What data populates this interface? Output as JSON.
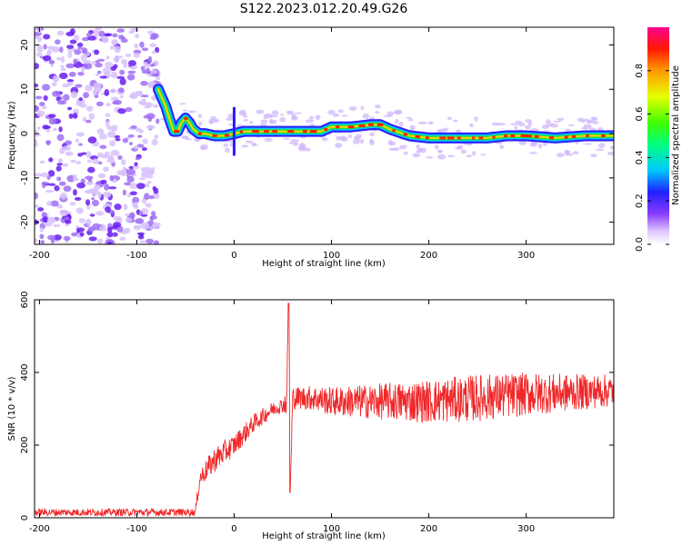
{
  "title": "S122.2023.012.20.49.G26",
  "colors": {
    "snr_line": "#f0282a",
    "density_cloud": "#7a3cf0",
    "axis": "#000000"
  },
  "chart_data": [
    {
      "type": "heatmap",
      "title": "",
      "xlabel": "Height of straight line (km)",
      "ylabel": "Frequency (Hz)",
      "xlim": [
        -205,
        390
      ],
      "ylim": [
        -25,
        24
      ],
      "xticks": [
        -200,
        -100,
        0,
        100,
        200,
        300
      ],
      "yticks": [
        -20,
        -10,
        0,
        10,
        20
      ],
      "colorbar": {
        "label": "Normalized spectral amplitude",
        "range": [
          0,
          1
        ],
        "ticks": [
          "0.0",
          "0.2",
          "0.4",
          "0.6",
          "0.8"
        ],
        "colormap": "rainbow (white-purple-blue-cyan-green-yellow-red-magenta)"
      },
      "noise_region_x": [
        -205,
        -78
      ],
      "ridge": {
        "x": [
          -78,
          -70,
          -66,
          -62,
          -58,
          -54,
          -50,
          -46,
          -42,
          -36,
          -30,
          -20,
          -10,
          0,
          10,
          30,
          60,
          90,
          100,
          120,
          140,
          150,
          160,
          180,
          200,
          230,
          260,
          280,
          300,
          330,
          360,
          390
        ],
        "y": [
          10,
          6,
          3,
          0.5,
          0.5,
          2.5,
          3.5,
          2.5,
          1,
          0,
          0,
          -0.5,
          -0.5,
          0,
          0.5,
          0.5,
          0.5,
          0.5,
          1.5,
          1.5,
          2.0,
          2.0,
          1.0,
          -0.5,
          -1.0,
          -1.0,
          -1.0,
          -0.5,
          -0.5,
          -1.0,
          -0.5,
          -0.5
        ]
      },
      "annotations": [
        "vertical spike near x = 0"
      ]
    },
    {
      "type": "line",
      "title": "",
      "xlabel": "Height of straight line (km)",
      "ylabel": "SNR (10 * v/v)",
      "xlim": [
        -205,
        390
      ],
      "ylim": [
        0,
        600
      ],
      "xticks": [
        -200,
        -100,
        0,
        100,
        200,
        300
      ],
      "yticks": [
        0,
        200,
        400,
        600
      ],
      "series": [
        {
          "x": [
            -205,
            -100,
            -40,
            -35,
            -20,
            0,
            20,
            40,
            50,
            54,
            56,
            58,
            60,
            80,
            100,
            150,
            200,
            250,
            300,
            350,
            390
          ],
          "y": [
            15,
            15,
            15,
            110,
            160,
            200,
            260,
            300,
            310,
            320,
            590,
            80,
            330,
            330,
            320,
            320,
            320,
            330,
            340,
            345,
            350
          ],
          "noise_amplitude": [
            10,
            10,
            10,
            25,
            35,
            30,
            25,
            20,
            20,
            40,
            60,
            60,
            30,
            35,
            40,
            50,
            60,
            65,
            60,
            50,
            45
          ]
        }
      ]
    }
  ]
}
